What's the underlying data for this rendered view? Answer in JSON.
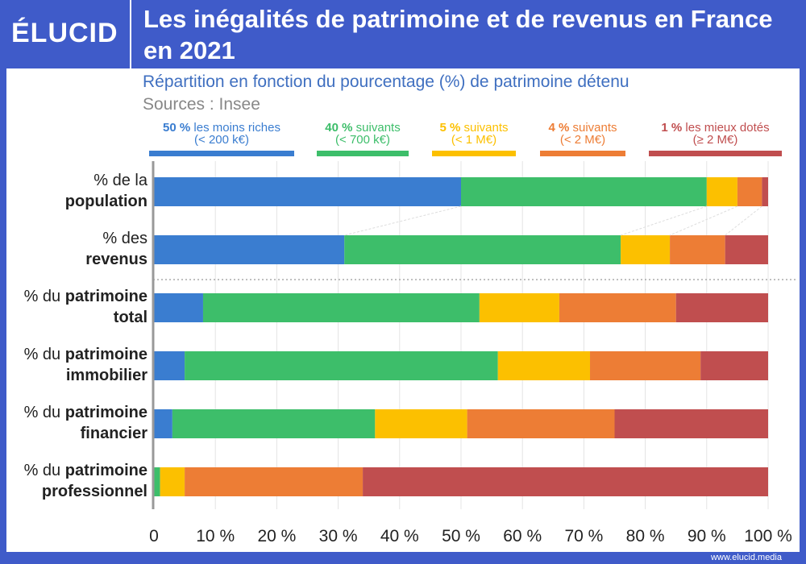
{
  "header": {
    "logo": "ÉLUCID",
    "title": "Les inégalités de patrimoine et de revenus en France en 2021"
  },
  "footer": {
    "url": "www.elucid.media"
  },
  "chart_data": {
    "type": "bar",
    "orientation": "horizontal-stacked",
    "title": "Les inégalités de patrimoine et de revenus en France en 2021",
    "subtitle": "Répartition en fonction du pourcentage (%) de patrimoine détenu",
    "source": "Sources : Insee",
    "xlim": [
      0,
      100
    ],
    "x_ticks": [
      "0",
      "10 %",
      "20 %",
      "30 %",
      "40 %",
      "50 %",
      "60 %",
      "70 %",
      "80 %",
      "90 %",
      "100 %"
    ],
    "grid": true,
    "legend_position": "top",
    "categories": [
      {
        "normal": "% de la",
        "bold1": "",
        "bold2": "population"
      },
      {
        "normal": "% des",
        "bold1": "",
        "bold2": "revenus"
      },
      {
        "normal": "% du ",
        "bold1": "patrimoine",
        "bold2": "total"
      },
      {
        "normal": "% du ",
        "bold1": "patrimoine",
        "bold2": "immobilier"
      },
      {
        "normal": "% du ",
        "bold1": "patrimoine",
        "bold2": "financier"
      },
      {
        "normal": "% du ",
        "bold1": "patrimoine",
        "bold2": "professionnel"
      }
    ],
    "series": [
      {
        "name": "50 % les moins riches",
        "pct": "50 %",
        "label": "les moins riches",
        "sub": "(< 200 k€)",
        "color": "#3a7dd0",
        "values": [
          50,
          31,
          8,
          5,
          3,
          0
        ]
      },
      {
        "name": "40 % suivants",
        "pct": "40 %",
        "label": "suivants",
        "sub": "(< 700 k€)",
        "color": "#3dbe6a",
        "values": [
          40,
          45,
          45,
          51,
          33,
          1
        ]
      },
      {
        "name": "5 % suivants",
        "pct": "5 %",
        "label": "suivants",
        "sub": "(< 1 M€)",
        "color": "#fcc000",
        "values": [
          5,
          8,
          13,
          15,
          15,
          4
        ]
      },
      {
        "name": "4 % suivants",
        "pct": "4 %",
        "label": "suivants",
        "sub": "(< 2 M€)",
        "color": "#ed7d35",
        "values": [
          4,
          9,
          19,
          18,
          24,
          29
        ]
      },
      {
        "name": "1 % les mieux dotés",
        "pct": "1 %",
        "label": "les mieux dotés",
        "sub": "(≥ 2 M€)",
        "color": "#c04e4f",
        "values": [
          1,
          7,
          15,
          11,
          25,
          66
        ]
      }
    ]
  }
}
